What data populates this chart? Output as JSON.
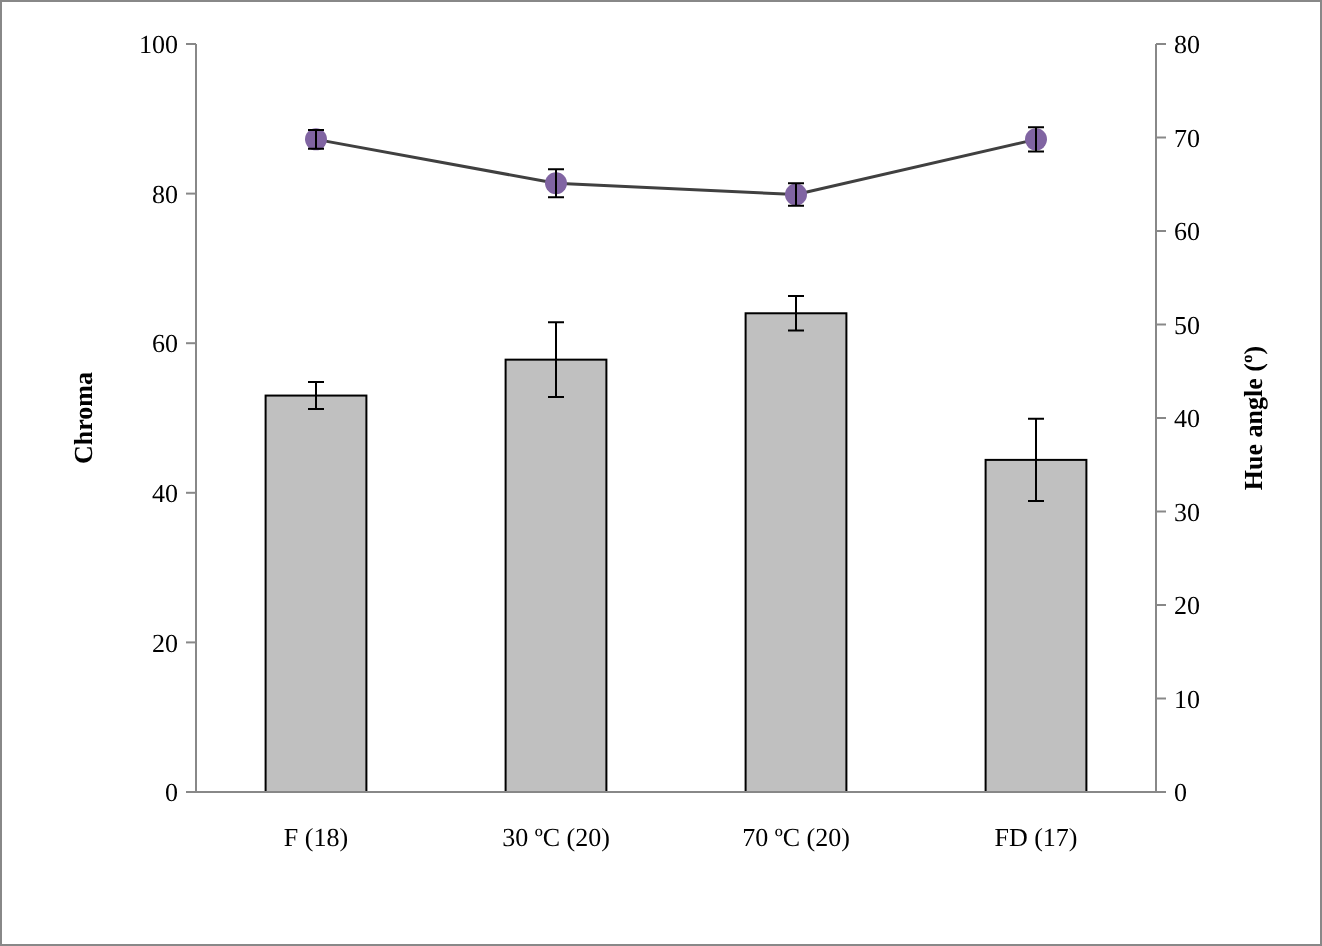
{
  "chart_data": {
    "type": "bar",
    "categories": [
      "F (18)",
      "30 ºC (20)",
      "70 ºC (20)",
      "FD (17)"
    ],
    "ylabel": "Chroma",
    "y2label": "Hue angle (º)",
    "ylim": [
      0,
      100
    ],
    "yticks": [
      0,
      20,
      40,
      60,
      80,
      100
    ],
    "y2lim": [
      0,
      80
    ],
    "y2ticks": [
      0,
      10,
      20,
      30,
      40,
      50,
      60,
      70,
      80
    ],
    "grid": false,
    "series": [
      {
        "color": "#c0c0c0",
        "values": [
          53,
          57.8,
          64,
          44.4
        ],
        "errors": [
          1.8,
          5,
          2.3,
          5.5
        ]
      },
      {
        "type": "line",
        "axis": "y2",
        "color": "#404040",
        "marker": "circle",
        "values": [
          69.8,
          65.1,
          63.9,
          69.8
        ],
        "errors": [
          1,
          1.5,
          1.2,
          1.3
        ]
      }
    ]
  }
}
